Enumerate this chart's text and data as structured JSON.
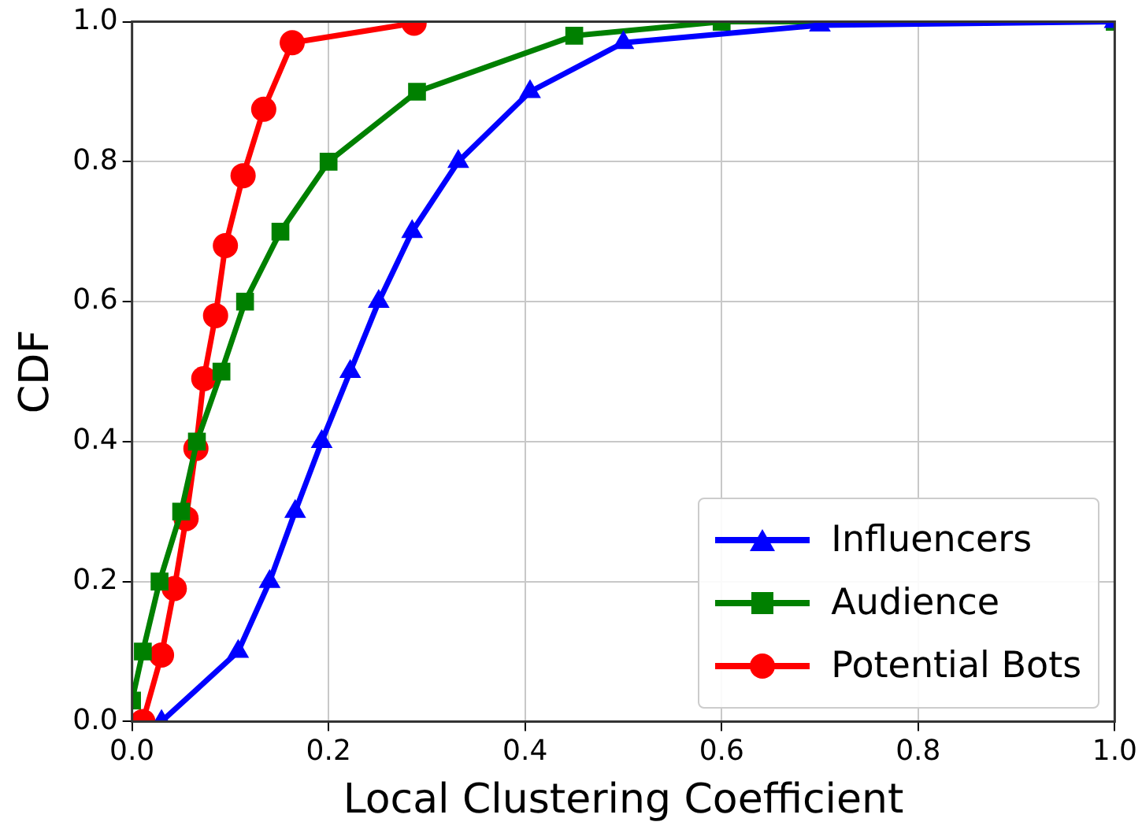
{
  "chart_data": {
    "type": "line",
    "xlabel": "Local Clustering Coefficient",
    "ylabel": "CDF",
    "xlim": [
      0,
      1
    ],
    "ylim": [
      0,
      1
    ],
    "xticks": [
      {
        "value": 0,
        "label": "0.0"
      },
      0.2,
      0.4,
      0.6,
      0.8,
      {
        "value": 1,
        "label": "1.0"
      }
    ],
    "yticks": [
      {
        "value": 0,
        "label": "0.0"
      },
      0.2,
      0.4,
      0.6,
      0.8,
      {
        "value": 1,
        "label": "1.0"
      }
    ],
    "grid": true,
    "legend": "bottom right",
    "series": [
      {
        "name": "Influencers",
        "color": "#0000ff",
        "marker": "triangle",
        "x": [
          0.03,
          0.108,
          0.14,
          0.166,
          0.193,
          0.222,
          0.251,
          0.285,
          0.332,
          0.405,
          0.5,
          0.7,
          1.0
        ],
        "values": [
          0,
          0.1,
          0.2,
          0.3,
          0.4,
          0.5,
          0.6,
          0.7,
          0.8,
          0.9,
          0.97,
          0.995,
          1.0
        ]
      },
      {
        "name": "Audience",
        "color": "#008000",
        "marker": "square",
        "x": [
          0.0,
          0.011,
          0.028,
          0.05,
          0.066,
          0.091,
          0.115,
          0.151,
          0.2,
          0.29,
          0.45,
          0.6,
          1.0
        ],
        "values": [
          0.03,
          0.1,
          0.2,
          0.3,
          0.4,
          0.5,
          0.6,
          0.7,
          0.8,
          0.9,
          0.98,
          1.0,
          1.0
        ]
      },
      {
        "name": "Potential Bots",
        "color": "#ff0000",
        "marker": "circle",
        "x": [
          0.011,
          0.03,
          0.043,
          0.055,
          0.065,
          0.073,
          0.085,
          0.095,
          0.113,
          0.134,
          0.163,
          0.287
        ],
        "values": [
          0,
          0.095,
          0.19,
          0.29,
          0.39,
          0.49,
          0.58,
          0.68,
          0.78,
          0.875,
          0.97,
          0.998
        ]
      }
    ]
  }
}
